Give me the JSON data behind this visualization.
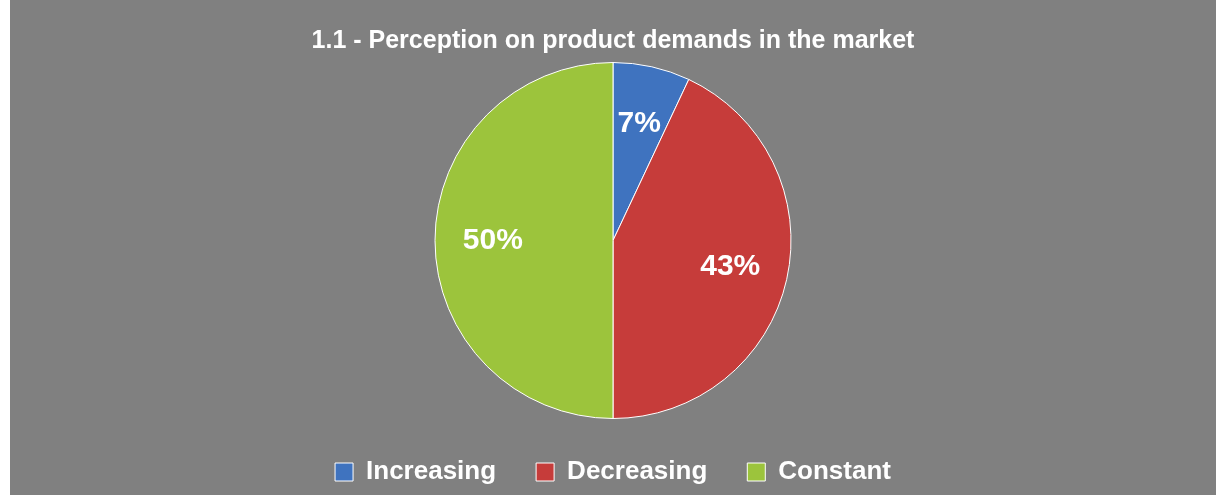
{
  "chart_data": {
    "type": "pie",
    "title": "1.1 - Perception on product demands in the market",
    "categories": [
      "Increasing",
      "Decreasing",
      "Constant"
    ],
    "values": [
      7,
      43,
      50
    ],
    "colors": [
      "#3f73bf",
      "#c63c3a",
      "#9cc43c"
    ],
    "value_labels": [
      "7%",
      "43%",
      "50%"
    ],
    "legend": "bottom"
  }
}
